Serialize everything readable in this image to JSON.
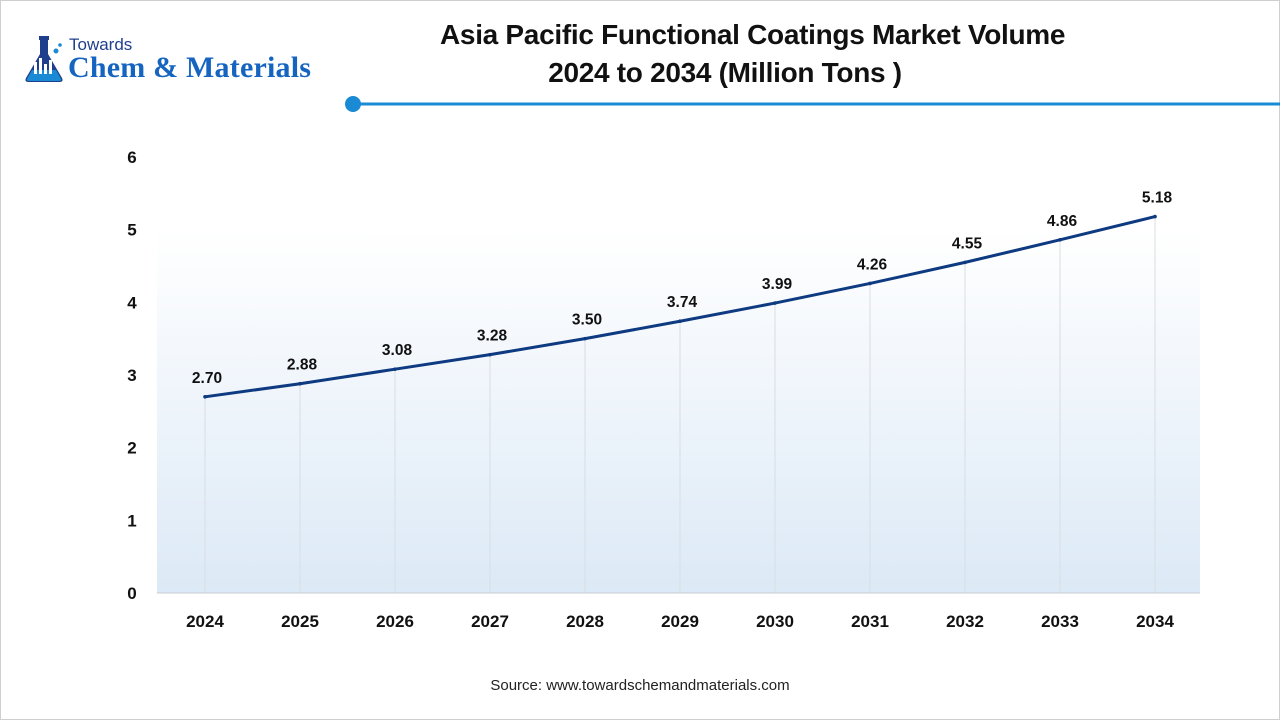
{
  "logo": {
    "line1": "Towards",
    "line2": "Chem & Materials"
  },
  "header": {
    "title_line1": "Asia Pacific Functional Coatings Market Volume",
    "title_line2": "2024 to 2034 (Million Tons )"
  },
  "footer": {
    "source": "Source: www.towardschemandmaterials.com"
  },
  "colors": {
    "line": "#0d3a80",
    "accent": "#1a8ad4",
    "grid": "#d9dde3",
    "area_top": "#ffffff",
    "area_bottom": "#dce9f6"
  },
  "chart_data": {
    "type": "line",
    "title": "Asia Pacific Functional Coatings Market Volume 2024 to 2034 (Million Tons )",
    "xlabel": "",
    "ylabel": "",
    "categories": [
      "2024",
      "2025",
      "2026",
      "2027",
      "2028",
      "2029",
      "2030",
      "2031",
      "2032",
      "2033",
      "2034"
    ],
    "values": [
      2.7,
      2.88,
      3.08,
      3.28,
      3.5,
      3.74,
      3.99,
      4.26,
      4.55,
      4.86,
      5.18
    ],
    "data_labels": [
      "2.70",
      "2.88",
      "3.08",
      "3.28",
      "3.50",
      "3.74",
      "3.99",
      "4.26",
      "4.55",
      "4.86",
      "5.18"
    ],
    "yticks": [
      "0",
      "1",
      "2",
      "3",
      "4",
      "5",
      "6"
    ],
    "ylim": [
      0,
      6
    ],
    "grid": "vertical",
    "legend": "none"
  }
}
